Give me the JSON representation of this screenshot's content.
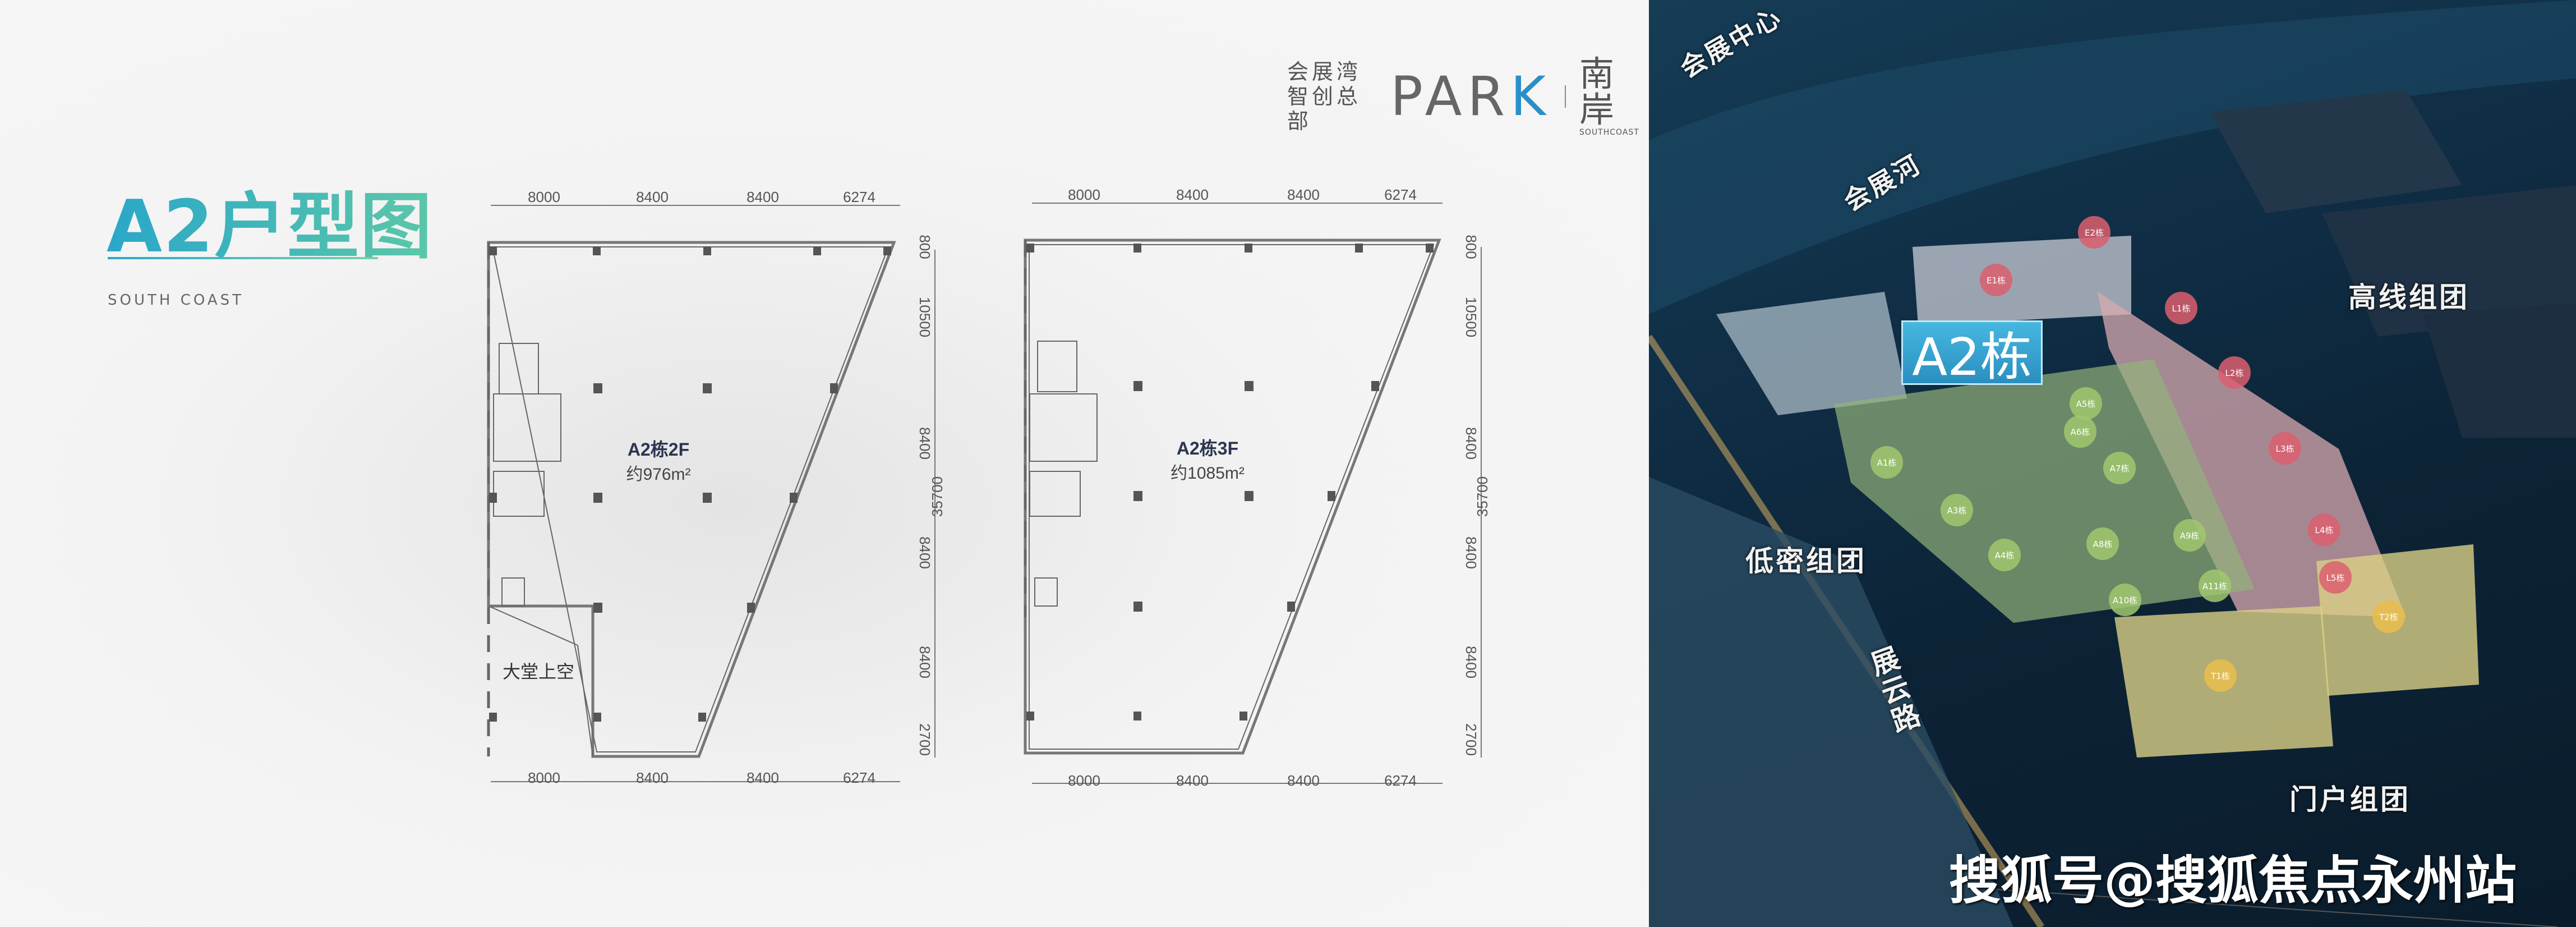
{
  "header": {
    "title": "A2户型图",
    "subtitle": "SOUTH COAST"
  },
  "logo": {
    "line1": "会展湾",
    "line2": "智创总部",
    "park": "PAR",
    "park_k": "K",
    "brand_cn": "南岸",
    "brand_en": "SOUTHCOAST"
  },
  "plans": [
    {
      "name": "A2栋2F",
      "area": "约976m²",
      "void_label": "大堂上空",
      "top_dims": [
        "8000",
        "8400",
        "8400",
        "6274"
      ],
      "bottom_dims": [
        "8000",
        "8400",
        "8400",
        "6274"
      ],
      "side_dims": [
        "800",
        "10500",
        "8400",
        "8400",
        "8400",
        "2700"
      ],
      "total": "35700"
    },
    {
      "name": "A2栋3F",
      "area": "约1085m²",
      "top_dims": [
        "8000",
        "8400",
        "8400",
        "6274"
      ],
      "bottom_dims": [
        "8000",
        "8400",
        "8400",
        "6274"
      ],
      "side_dims": [
        "800",
        "10500",
        "8400",
        "8400",
        "8400",
        "2700"
      ],
      "total": "35700"
    }
  ],
  "aerial": {
    "labels": {
      "center": "会展中心",
      "river": "会展河",
      "highlight": "A2栋",
      "high_group": "高线组团",
      "low_group": "低密组团",
      "road": "展云路",
      "gate_group": "门户组团"
    },
    "buildings": [
      "E2栋",
      "E1栋",
      "L1栋",
      "L2栋",
      "L3栋",
      "L4栋",
      "L5栋",
      "A1栋",
      "A3栋",
      "A4栋",
      "A5栋",
      "A6栋",
      "A7栋",
      "A8栋",
      "A9栋",
      "A10栋",
      "A11栋",
      "T1栋",
      "T2栋"
    ],
    "watermark": "搜狐号@搜狐焦点永州站"
  }
}
